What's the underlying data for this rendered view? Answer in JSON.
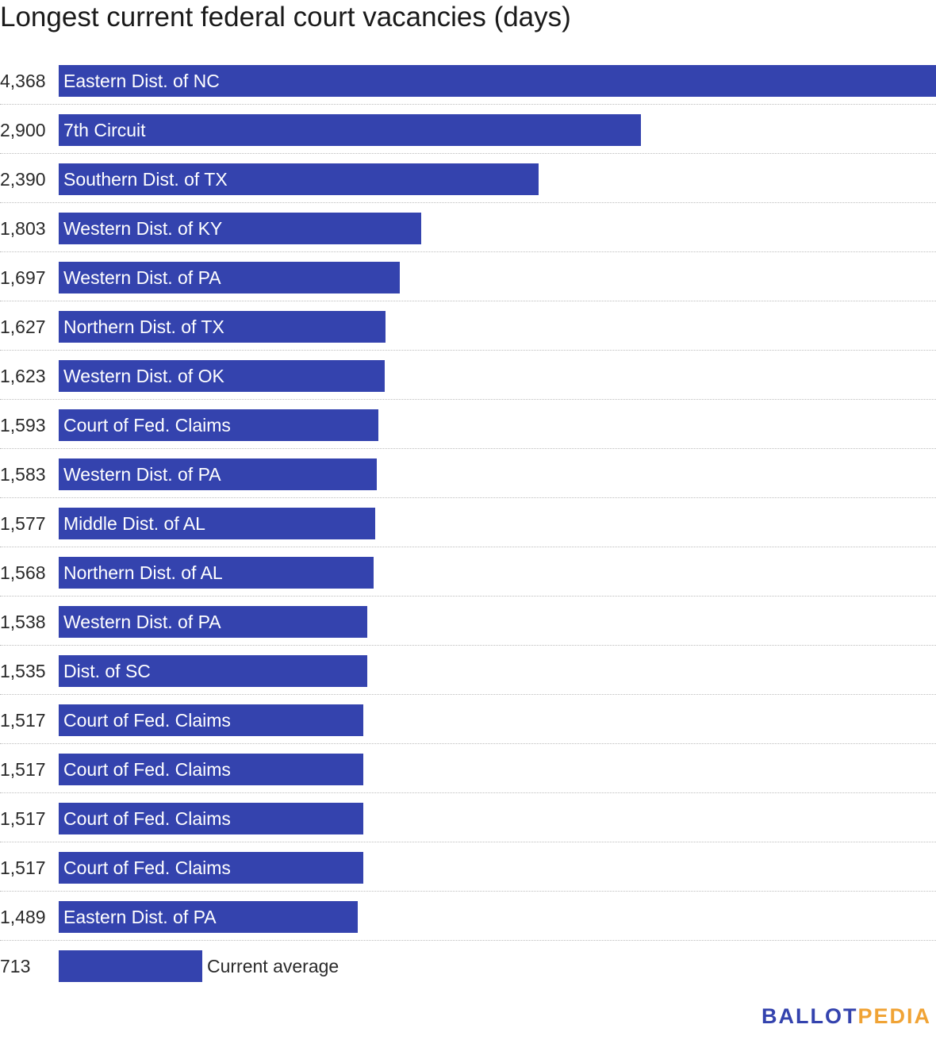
{
  "colors": {
    "bar": "#3443ae",
    "logo_primary": "#3443ae",
    "logo_accent": "#f0a335"
  },
  "logo": {
    "part1": "BALLOT",
    "part2": "PEDIA"
  },
  "chart_data": {
    "type": "bar",
    "orientation": "horizontal",
    "title": "Longest current federal court vacancies (days)",
    "xlabel": "",
    "ylabel": "",
    "xlim": [
      0,
      4368
    ],
    "grid": false,
    "legend": "none",
    "categories": [
      "Eastern Dist. of NC",
      "7th Circuit",
      "Southern Dist. of TX",
      "Western Dist. of KY",
      "Western Dist. of PA",
      "Northern Dist. of TX",
      "Western Dist. of OK",
      "Court of Fed. Claims",
      "Western Dist. of PA",
      "Middle Dist. of AL",
      "Northern Dist. of AL",
      "Western Dist. of PA",
      "Dist. of SC",
      "Court of Fed. Claims",
      "Court of Fed. Claims",
      "Court of Fed. Claims",
      "Court of Fed. Claims",
      "Eastern Dist. of PA",
      "Current average"
    ],
    "values": [
      4368,
      2900,
      2390,
      1803,
      1697,
      1627,
      1623,
      1593,
      1583,
      1577,
      1568,
      1538,
      1535,
      1517,
      1517,
      1517,
      1517,
      1489,
      713
    ],
    "value_labels": [
      "4,368",
      "2,900",
      "2,390",
      "1,803",
      "1,697",
      "1,627",
      "1,623",
      "1,593",
      "1,583",
      "1,577",
      "1,568",
      "1,538",
      "1,535",
      "1,517",
      "1,517",
      "1,517",
      "1,517",
      "1,489",
      "713"
    ]
  }
}
